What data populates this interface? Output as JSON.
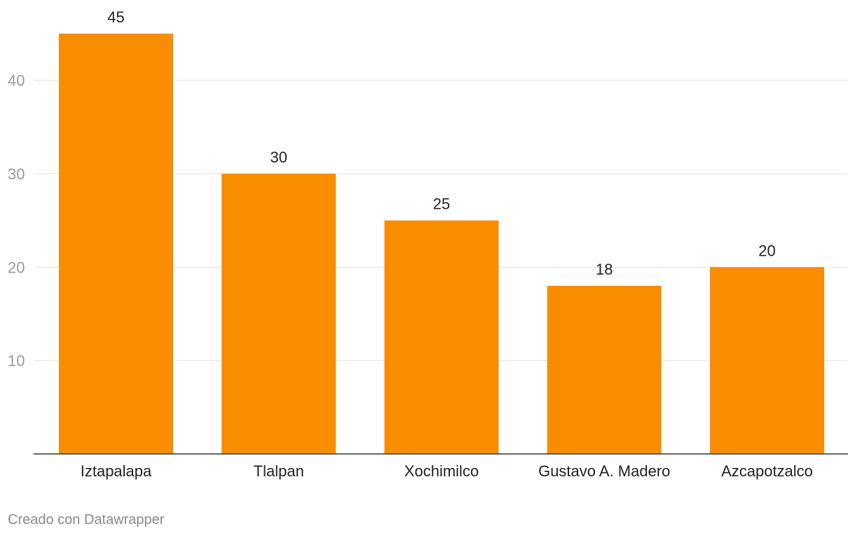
{
  "chart_data": {
    "type": "bar",
    "title": "",
    "xlabel": "",
    "ylabel": "",
    "categories": [
      "Iztapalapa",
      "Tlalpan",
      "Xochimilco",
      "Gustavo A. Madero",
      "Azcapotzalco"
    ],
    "values": [
      45,
      30,
      25,
      18,
      20
    ],
    "value_labels": [
      "45",
      "30",
      "25",
      "18",
      "20"
    ],
    "ylim": [
      0,
      45
    ],
    "yticks": [
      10,
      20,
      30,
      40
    ],
    "ytick_labels": [
      "10",
      "20",
      "30",
      "40"
    ],
    "grid": true,
    "bar_color": "#f88d00"
  },
  "footer": {
    "credit": "Creado con Datawrapper"
  }
}
